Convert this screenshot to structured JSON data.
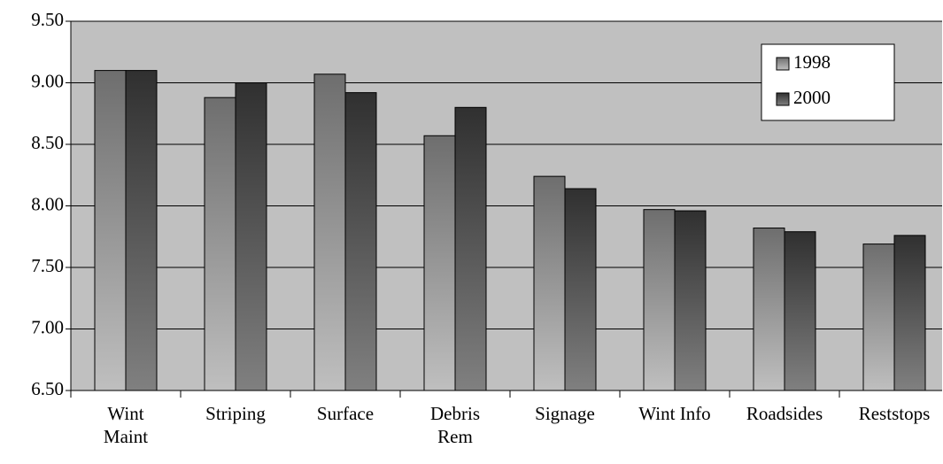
{
  "chart_data": {
    "type": "bar",
    "categories": [
      "Wint\nMaint",
      "Striping",
      "Surface",
      "Debris\nRem",
      "Signage",
      "Wint Info",
      "Roadsides",
      "Reststops"
    ],
    "series": [
      {
        "name": "1998",
        "color": "#8a8a8a",
        "values": [
          9.1,
          8.88,
          9.07,
          8.57,
          8.24,
          7.97,
          7.82,
          7.69
        ]
      },
      {
        "name": "2000",
        "color": "#3c3c3c",
        "values": [
          9.1,
          9.0,
          8.92,
          8.8,
          8.14,
          7.96,
          7.79,
          7.76
        ]
      }
    ],
    "ylim": [
      6.5,
      9.5
    ],
    "yticks": [
      {
        "value": 6.5,
        "label": "6.50"
      },
      {
        "value": 7,
        "label": "7.00"
      },
      {
        "value": 7.5,
        "label": "7.50"
      },
      {
        "value": 8,
        "label": "8.00"
      },
      {
        "value": 8.5,
        "label": "8.50"
      },
      {
        "value": 9,
        "label": "9.00"
      },
      {
        "value": 9.5,
        "label": "9.50"
      }
    ],
    "grid": true,
    "legend": "top-right"
  }
}
